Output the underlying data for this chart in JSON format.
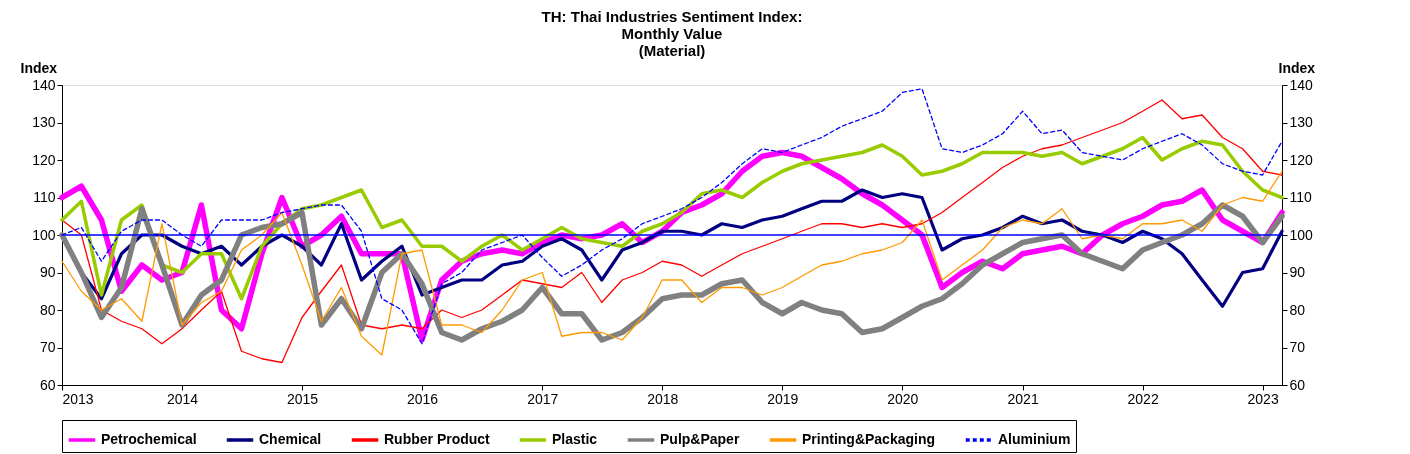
{
  "chart_data": {
    "type": "line",
    "title": "TH: Thai Industries Sentiment Index:\nMonthly Value\n(Material)",
    "ylabel": "Index",
    "y2label": "Index",
    "x": [
      "2013-01",
      "2013-03",
      "2013-05",
      "2013-07",
      "2013-09",
      "2013-11",
      "2014-01",
      "2014-03",
      "2014-05",
      "2014-07",
      "2014-09",
      "2014-11",
      "2015-01",
      "2015-03",
      "2015-05",
      "2015-07",
      "2015-09",
      "2015-11",
      "2016-01",
      "2016-03",
      "2016-05",
      "2016-07",
      "2016-09",
      "2016-11",
      "2017-01",
      "2017-03",
      "2017-05",
      "2017-07",
      "2017-09",
      "2017-11",
      "2018-01",
      "2018-03",
      "2018-05",
      "2018-07",
      "2018-09",
      "2018-11",
      "2019-01",
      "2019-03",
      "2019-05",
      "2019-07",
      "2019-09",
      "2019-11",
      "2020-01",
      "2020-03",
      "2020-05",
      "2020-07",
      "2020-09",
      "2020-11",
      "2021-01",
      "2021-03",
      "2021-05",
      "2021-07",
      "2021-09",
      "2021-11",
      "2022-01",
      "2022-03",
      "2022-05",
      "2022-07",
      "2022-09",
      "2022-11",
      "2023-01",
      "2023-03"
    ],
    "series": [
      {
        "name": "Petrochemical",
        "color": "#ff00ff",
        "values": [
          110,
          113,
          104,
          85,
          92,
          88,
          90,
          108,
          80,
          75,
          95,
          110,
          97,
          100,
          105,
          95,
          95,
          95,
          72,
          88,
          93,
          95,
          96,
          95,
          98,
          100,
          99,
          100,
          103,
          98,
          101,
          106,
          108,
          111,
          117,
          121,
          122,
          121,
          118,
          115,
          111,
          108,
          104,
          100,
          86,
          90,
          93,
          91,
          95,
          96,
          97,
          95,
          100,
          103,
          105,
          108,
          109,
          112,
          104,
          101,
          98,
          106
        ]
      },
      {
        "name": "Chemical",
        "color": "#000080",
        "values": [
          100,
          90,
          83,
          95,
          100,
          100,
          97,
          95,
          97,
          92,
          97,
          100,
          97,
          92,
          103,
          88,
          93,
          97,
          84,
          86,
          88,
          88,
          92,
          93,
          97,
          99,
          96,
          88,
          96,
          98,
          101,
          101,
          100,
          103,
          102,
          104,
          105,
          107,
          109,
          109,
          112,
          110,
          111,
          110,
          96,
          99,
          100,
          102,
          105,
          103,
          104,
          101,
          100,
          98,
          101,
          99,
          95,
          88,
          81,
          90,
          91,
          101
        ]
      },
      {
        "name": "Rubber Product",
        "color": "#ff0000",
        "values": [
          104,
          100,
          80,
          77,
          75,
          71,
          75,
          80,
          85,
          69,
          67,
          66,
          78,
          85,
          92,
          76,
          75,
          76,
          75,
          80,
          78,
          80,
          84,
          88,
          87,
          86,
          90,
          82,
          88,
          90,
          93,
          92,
          89,
          92,
          95,
          97,
          99,
          101,
          103,
          103,
          102,
          103,
          102,
          103,
          106,
          110,
          114,
          118,
          121,
          123,
          124,
          126,
          128,
          130,
          133,
          136,
          131,
          132,
          126,
          123,
          117,
          116
        ]
      },
      {
        "name": "Plastic",
        "color": "#99cc00",
        "values": [
          104,
          109,
          84,
          104,
          108,
          92,
          90,
          95,
          95,
          83,
          97,
          103,
          107,
          108,
          110,
          112,
          102,
          104,
          97,
          97,
          93,
          97,
          100,
          96,
          99,
          102,
          99,
          98,
          97,
          101,
          103,
          106,
          111,
          112,
          110,
          114,
          117,
          119,
          120,
          121,
          122,
          124,
          121,
          116,
          117,
          119,
          122,
          122,
          122,
          121,
          122,
          119,
          121,
          123,
          126,
          120,
          123,
          125,
          124,
          117,
          112,
          110
        ]
      },
      {
        "name": "Pulp&Paper",
        "color": "#808080",
        "values": [
          100,
          90,
          78,
          86,
          107,
          92,
          76,
          84,
          88,
          100,
          102,
          103,
          106,
          76,
          83,
          75,
          90,
          95,
          87,
          74,
          72,
          75,
          77,
          80,
          86,
          79,
          79,
          72,
          74,
          78,
          83,
          84,
          84,
          87,
          88,
          82,
          79,
          82,
          80,
          79,
          74,
          75,
          78,
          81,
          83,
          87,
          92,
          95,
          98,
          99,
          100,
          95,
          93,
          91,
          96,
          98,
          100,
          103,
          108,
          105,
          98,
          105
        ]
      },
      {
        "name": "Printing&Packaging",
        "color": "#ff9900",
        "values": [
          93,
          85,
          80,
          83,
          77,
          103,
          76,
          82,
          85,
          96,
          100,
          106,
          92,
          77,
          86,
          73,
          68,
          95,
          96,
          76,
          76,
          74,
          80,
          88,
          90,
          73,
          74,
          74,
          72,
          78,
          88,
          88,
          82,
          86,
          86,
          84,
          86,
          89,
          92,
          93,
          95,
          96,
          98,
          104,
          88,
          92,
          96,
          102,
          104,
          103,
          107,
          99,
          100,
          99,
          103,
          103,
          104,
          101,
          108,
          110,
          109,
          117
        ]
      },
      {
        "name": "Aluminium",
        "color": "#0000ff",
        "line_style": "dashed",
        "values": [
          100,
          102,
          93,
          101,
          104,
          104,
          100,
          97,
          104,
          104,
          104,
          106,
          107,
          108,
          108,
          101,
          83,
          80,
          71,
          87,
          90,
          96,
          98,
          100,
          94,
          89,
          92,
          96,
          99,
          103,
          105,
          107,
          110,
          114,
          119,
          123,
          122,
          124,
          126,
          129,
          131,
          133,
          138,
          139,
          123,
          122,
          124,
          127,
          133,
          127,
          128,
          122,
          121,
          120,
          123,
          125,
          127,
          124,
          119,
          117,
          116,
          125
        ]
      }
    ],
    "xlim": [
      "2013-01",
      "2023-03"
    ],
    "xticks": [
      "2013",
      "2014",
      "2015",
      "2016",
      "2017",
      "2018",
      "2019",
      "2020",
      "2021",
      "2022",
      "2023"
    ],
    "ylim": [
      60,
      140
    ],
    "yticks": [
      60,
      70,
      80,
      90,
      100,
      110,
      120,
      130,
      140
    ],
    "y2lim": [
      60,
      140
    ],
    "y2ticks": [
      60,
      70,
      80,
      90,
      100,
      110,
      120,
      130,
      140
    ],
    "ref_lines": [
      {
        "axis": "y",
        "value": 100,
        "color": "#0000ff"
      }
    ],
    "grid": false,
    "legend": "bottom"
  }
}
